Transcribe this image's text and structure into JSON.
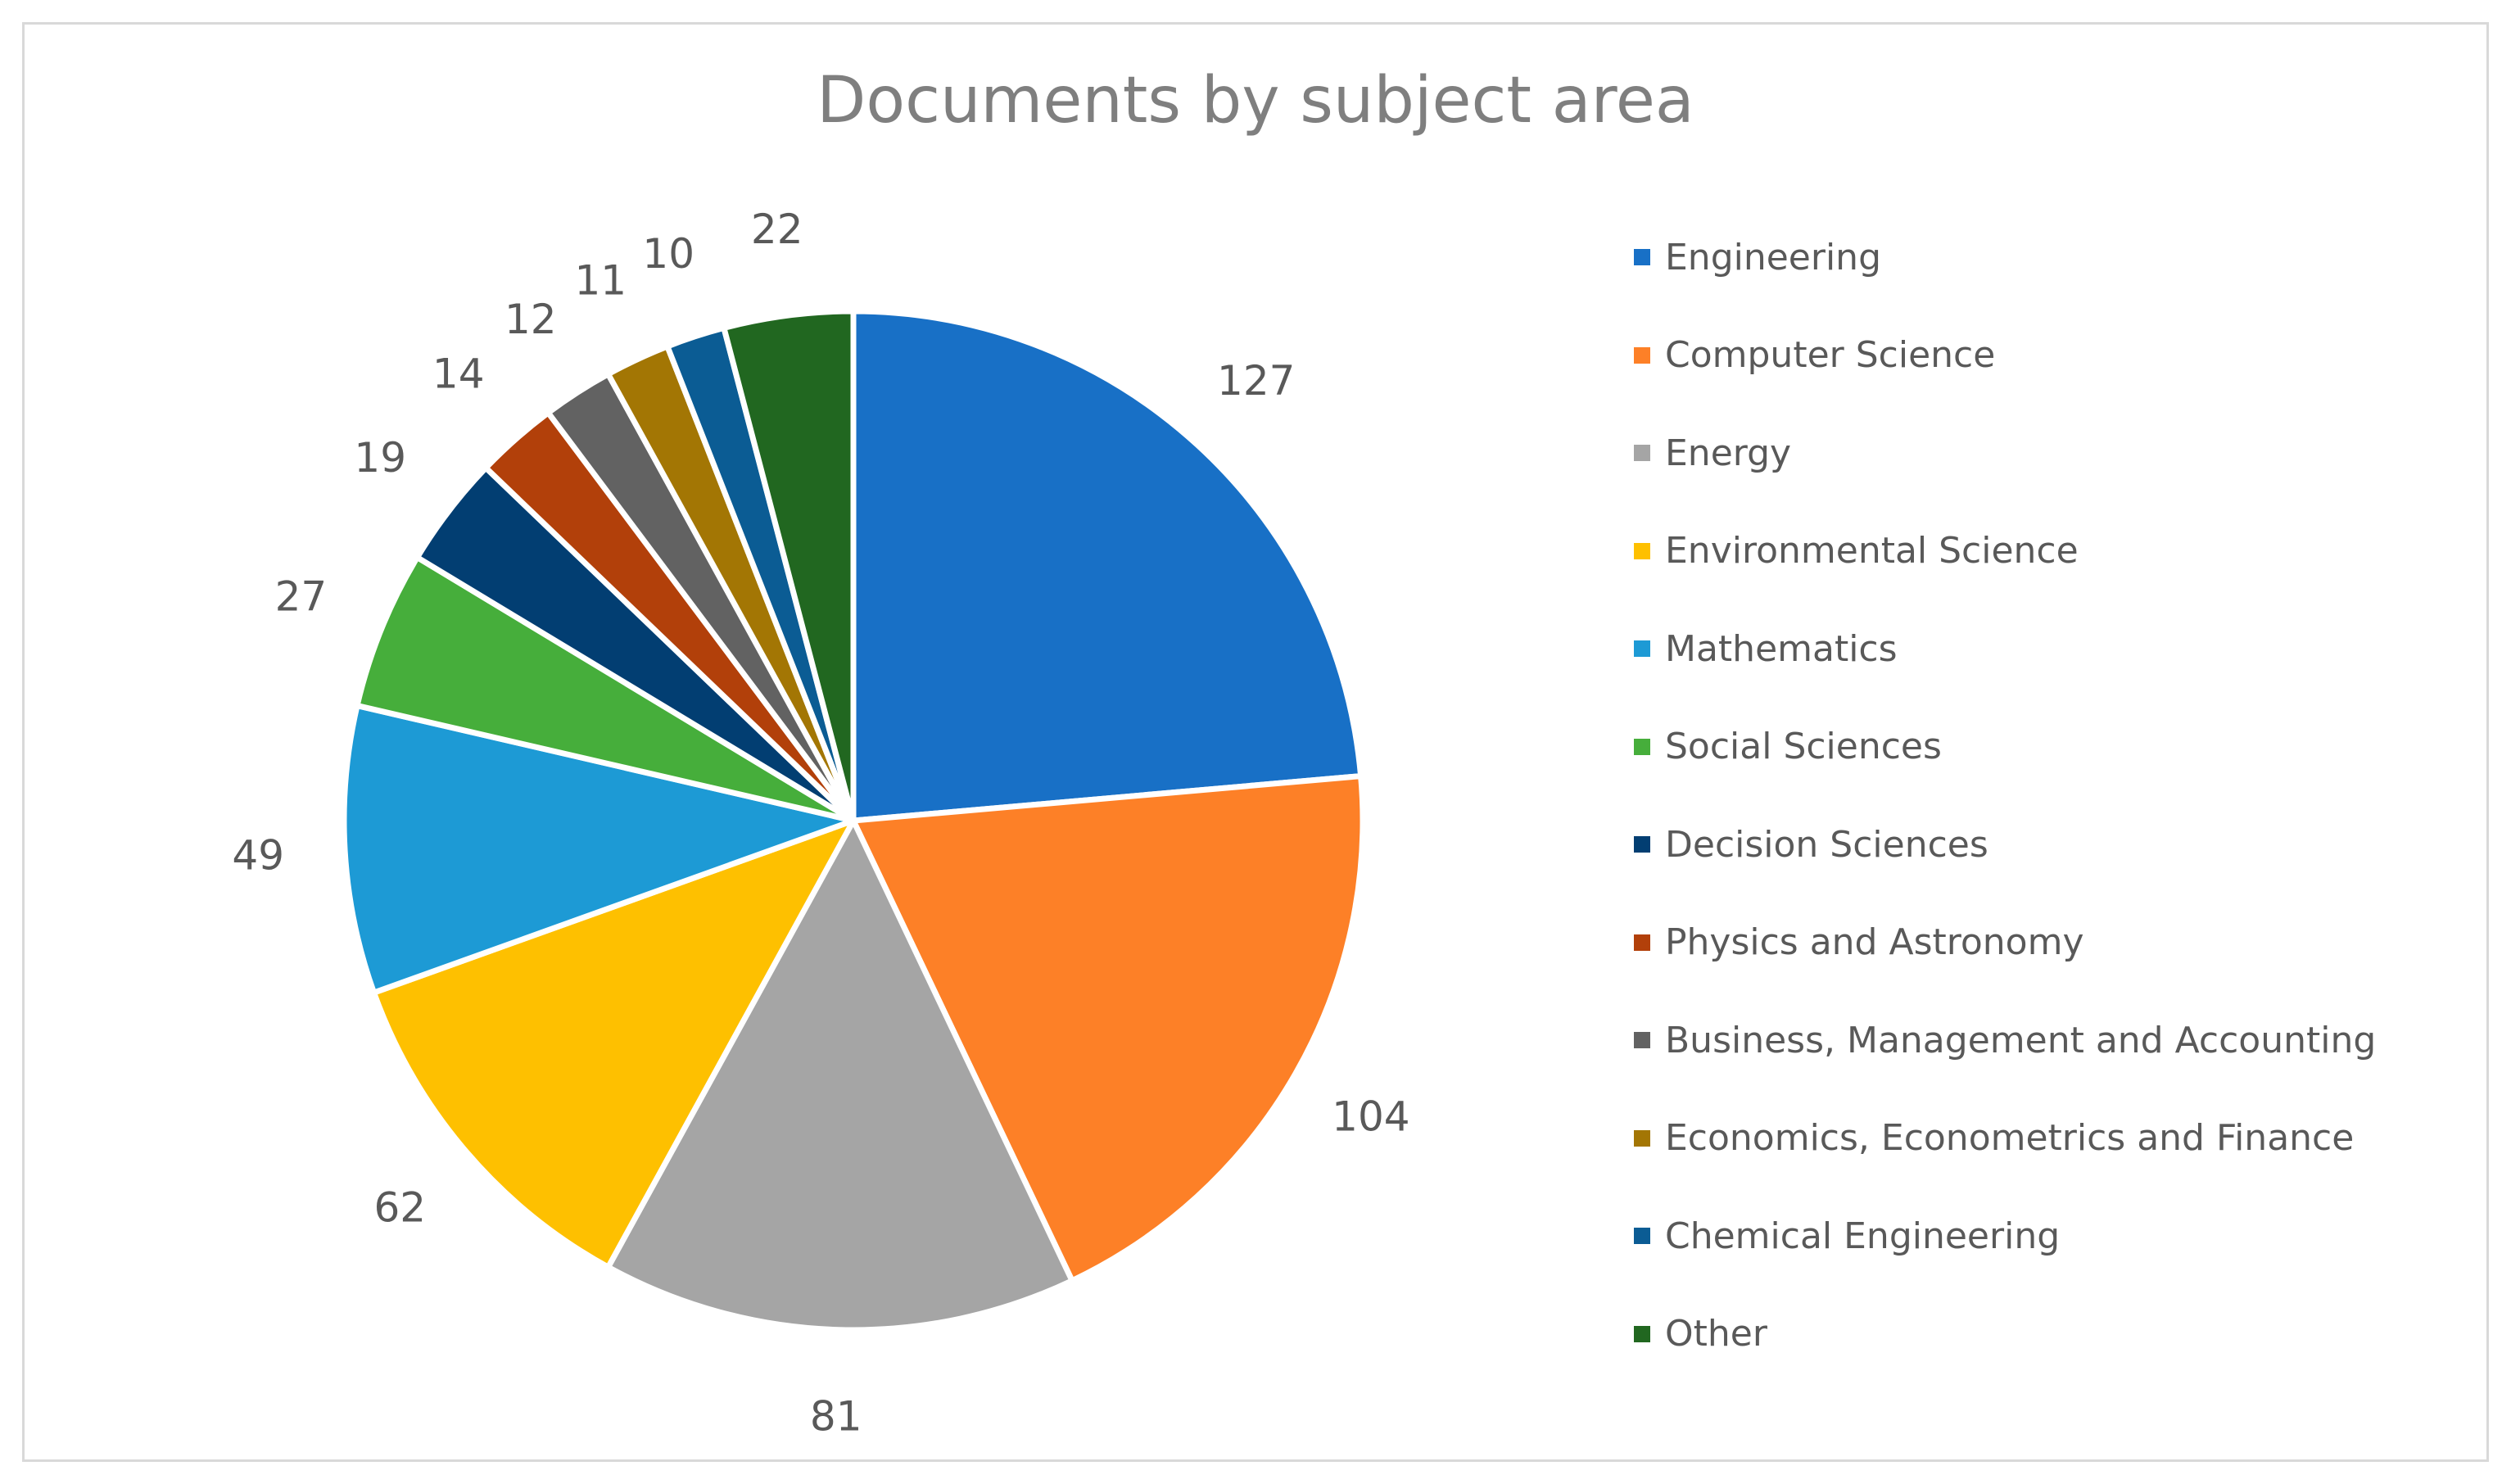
{
  "chart_data": {
    "type": "pie",
    "title": "Documents by subject area",
    "categories": [
      "Engineering",
      "Computer Science",
      "Energy",
      "Environmental Science",
      "Mathematics",
      "Social Sciences",
      "Decision Sciences",
      "Physics and Astronomy",
      "Business, Management and Accounting",
      "Economics, Econometrics and Finance",
      "Chemical Engineering",
      "Other"
    ],
    "values": [
      127,
      104,
      81,
      62,
      49,
      27,
      19,
      14,
      12,
      11,
      10,
      22
    ],
    "colors": [
      "#1870c6",
      "#fd8027",
      "#a5a5a5",
      "#fec000",
      "#1d9ad5",
      "#46ae3b",
      "#023e72",
      "#b2400a",
      "#626262",
      "#a37604",
      "#0b5c94",
      "#216720"
    ],
    "legend_position": "right",
    "data_labels": "outside-end"
  }
}
